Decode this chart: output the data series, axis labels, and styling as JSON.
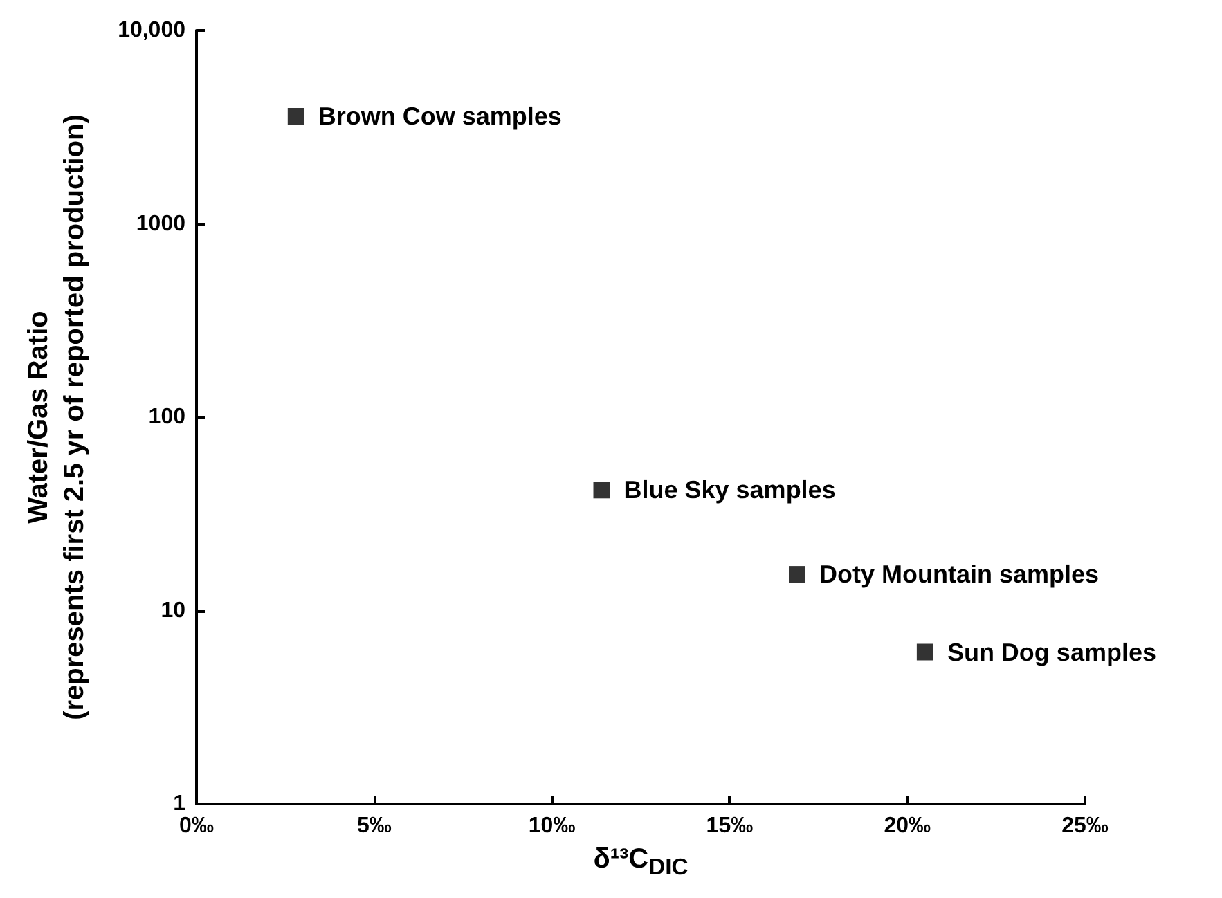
{
  "chart_data": {
    "type": "scatter",
    "xlabel": "δ¹³C$_{DIC}$",
    "ylabel": "Water/Gas Ratio\n(represents first 2.5 yr of reported production)",
    "x": [
      2.8,
      11.4,
      16.9,
      20.5
    ],
    "series": [
      {
        "color": "#000000",
        "values": [
          3600,
          42,
          15.4,
          6.1
        ]
      }
    ],
    "marker": "square",
    "log": "y",
    "grid": false,
    "xlim": [
      0,
      25
    ],
    "xticks": [
      {
        "value": 0,
        "label": "0‰"
      },
      {
        "value": 5,
        "label": "5‰"
      },
      {
        "value": 10,
        "label": "10‰"
      },
      {
        "value": 15,
        "label": "15‰"
      },
      {
        "value": 20,
        "label": "20‰"
      },
      {
        "value": 25,
        "label": "25‰"
      }
    ],
    "ylim": [
      1,
      10000
    ],
    "yticks": [
      1,
      10,
      100,
      1000,
      {
        "value": 10000,
        "label": "10,000"
      }
    ],
    "annotations": [
      {
        "text": "Brown Cow samples",
        "x": 2.8,
        "y": 3600
      },
      {
        "text": "Blue Sky samples",
        "x": 11.4,
        "y": 42
      },
      {
        "text": "Doty Mountain samples",
        "x": 16.9,
        "y": 15.4
      },
      {
        "text": "Sun Dog samples",
        "x": 20.5,
        "y": 6.1
      }
    ]
  }
}
